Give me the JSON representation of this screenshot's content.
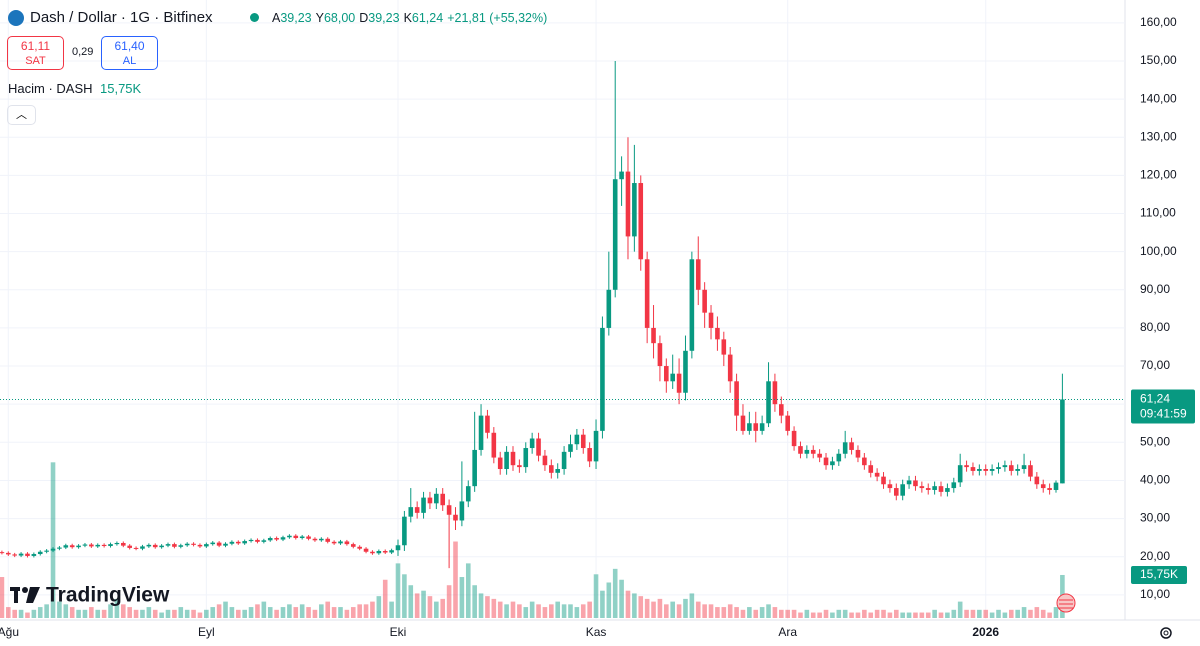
{
  "header": {
    "symbol": "Dash / Dollar · 1G · Bitfinex",
    "ohlc": [
      {
        "key": "A",
        "value": "39,23"
      },
      {
        "key": "Y",
        "value": "68,00"
      },
      {
        "key": "D",
        "value": "39,23"
      },
      {
        "key": "K",
        "value": "61,24"
      }
    ],
    "change": "+21,81 (+55,32%)",
    "sell_price": "61,11",
    "sell_label": "SAT",
    "spread": "0,29",
    "buy_price": "61,40",
    "buy_label": "AL",
    "volume_title": "Hacim · DASH",
    "volume_value": "15,75K"
  },
  "brand": "TradingView",
  "chart_data": {
    "type": "candlestick",
    "colors": {
      "up": "#089981",
      "down": "#f23645"
    },
    "xlim": [
      -0.3,
      175.8
    ],
    "xticks": [
      {
        "value": 1,
        "label": "Ağu"
      },
      {
        "value": 32,
        "label": "Eyl"
      },
      {
        "value": 62,
        "label": "Eki"
      },
      {
        "value": 93,
        "label": "Kas"
      },
      {
        "value": 123,
        "label": "Ara"
      },
      {
        "value": 154,
        "label": "2026"
      }
    ],
    "ylim": [
      3.4,
      166.0
    ],
    "yticks": [
      {
        "value": 10,
        "label": "10,00"
      },
      {
        "value": 20,
        "label": "20,00"
      },
      {
        "value": 30,
        "label": "30,00"
      },
      {
        "value": 40,
        "label": "40,00"
      },
      {
        "value": 50,
        "label": "50,00"
      },
      {
        "value": 60,
        "label": "60,00"
      },
      {
        "value": 70,
        "label": "70,00"
      },
      {
        "value": 80,
        "label": "80,00"
      },
      {
        "value": 90,
        "label": "90,00"
      },
      {
        "value": 100,
        "label": "100,00"
      },
      {
        "value": 110,
        "label": "110,00"
      },
      {
        "value": 120,
        "label": "120,00"
      },
      {
        "value": 130,
        "label": "130,00"
      },
      {
        "value": 140,
        "label": "140,00"
      },
      {
        "value": 150,
        "label": "150,00"
      },
      {
        "value": 160,
        "label": "160,00"
      }
    ],
    "grid": true,
    "volume_lim": [
      0,
      227
    ],
    "last_price_label": "61,24",
    "countdown": "09:41:59",
    "last_volume_label": "15,75K",
    "open": [
      21.2,
      21.0,
      20.6,
      20.3,
      20.8,
      20.2,
      20.7,
      21.3,
      21.6,
      22.1,
      22.4,
      23.0,
      22.5,
      22.9,
      23.2,
      22.7,
      23.1,
      22.8,
      23.3,
      23.6,
      22.9,
      22.3,
      22.1,
      22.7,
      23.1,
      22.5,
      22.9,
      23.3,
      22.6,
      23.0,
      23.4,
      23.1,
      22.7,
      23.3,
      23.7,
      22.9,
      23.4,
      23.9,
      23.5,
      24.1,
      24.4,
      23.9,
      24.3,
      24.9,
      24.5,
      25.1,
      25.5,
      24.9,
      25.3,
      24.7,
      24.3,
      24.7,
      23.9,
      23.5,
      24.0,
      23.3,
      22.6,
      22.1,
      21.3,
      20.9,
      21.5,
      21.1,
      21.7,
      23.0,
      30.5,
      33.0,
      31.5,
      35.5,
      34.0,
      36.5,
      33.5,
      31.0,
      29.5,
      34.5,
      38.5,
      48.0,
      57.0,
      52.5,
      46.0,
      43.0,
      47.5,
      44.0,
      43.5,
      48.5,
      51.0,
      46.5,
      44.0,
      42.0,
      43.0,
      47.5,
      49.5,
      52.0,
      48.5,
      45.0,
      53.0,
      80.0,
      90.0,
      119.0,
      121.0,
      104.0,
      118.0,
      98.0,
      80.0,
      76.0,
      70.0,
      66.0,
      68.0,
      63.0,
      74.0,
      98.0,
      90.0,
      84.0,
      80.0,
      77.0,
      73.0,
      66.0,
      57.0,
      53.0,
      55.0,
      53.0,
      55.0,
      66.0,
      60.0,
      57.0,
      53.0,
      49.0,
      47.0,
      48.0,
      47.0,
      46.0,
      44.0,
      45.0,
      47.0,
      50.0,
      48.0,
      46.0,
      44.0,
      42.0,
      41.0,
      39.0,
      38.0,
      36.0,
      39.0,
      40.0,
      38.5,
      38.0,
      37.5,
      38.5,
      37.0,
      38.0,
      39.5,
      44.0,
      43.5,
      42.5,
      43.0,
      42.5,
      43.0,
      43.5,
      44.0,
      42.5,
      43.0,
      44.0,
      41.0,
      39.0,
      38.0,
      37.5,
      39.23
    ],
    "high": [
      21.6,
      21.4,
      21.0,
      21.2,
      21.2,
      21.1,
      21.7,
      22.0,
      22.5,
      22.8,
      23.4,
      23.4,
      23.3,
      23.6,
      23.6,
      23.5,
      23.5,
      23.7,
      24.0,
      24.0,
      23.3,
      22.7,
      23.1,
      23.5,
      23.5,
      23.3,
      23.7,
      23.7,
      23.4,
      23.8,
      23.8,
      23.5,
      23.7,
      24.1,
      24.1,
      23.8,
      24.3,
      24.3,
      24.5,
      24.8,
      24.8,
      24.7,
      25.3,
      25.3,
      25.5,
      25.9,
      25.9,
      25.7,
      25.7,
      25.1,
      25.1,
      25.1,
      24.3,
      24.4,
      24.4,
      23.7,
      23.0,
      22.5,
      21.7,
      21.9,
      21.9,
      22.1,
      24.5,
      32.0,
      38.0,
      34.5,
      37.0,
      37.0,
      38.0,
      38.0,
      35.0,
      33.0,
      45.0,
      40.0,
      58.0,
      60.0,
      58.5,
      54.0,
      47.5,
      49.0,
      49.0,
      45.5,
      50.0,
      52.5,
      52.5,
      48.0,
      45.5,
      44.5,
      49.0,
      52.0,
      53.5,
      53.5,
      50.0,
      56.0,
      83.0,
      100.0,
      150.0,
      125.0,
      130.0,
      128.0,
      120.0,
      100.0,
      86.0,
      78.0,
      72.0,
      73.0,
      72.0,
      78.0,
      100.0,
      104.0,
      92.0,
      86.0,
      83.0,
      79.0,
      75.0,
      68.0,
      60.0,
      58.0,
      58.0,
      57.0,
      71.0,
      68.0,
      62.0,
      58.2,
      54.2,
      50.2,
      49.2,
      49.2,
      48.2,
      47.2,
      46.2,
      48.2,
      53.0,
      51.2,
      49.2,
      47.2,
      45.2,
      43.2,
      42.2,
      40.2,
      39.2,
      40.2,
      41.2,
      41.2,
      39.7,
      39.2,
      39.7,
      39.7,
      39.2,
      40.7,
      47.0,
      45.2,
      44.7,
      44.2,
      44.2,
      44.2,
      44.7,
      45.2,
      45.2,
      44.2,
      47.0,
      45.2,
      42.2,
      40.2,
      39.2,
      40.0,
      68.0
    ],
    "low": [
      20.6,
      20.2,
      19.9,
      19.9,
      19.8,
      19.8,
      20.3,
      20.9,
      21.2,
      21.7,
      22.0,
      22.1,
      22.1,
      22.5,
      22.3,
      22.3,
      22.4,
      22.4,
      22.9,
      22.5,
      21.9,
      21.7,
      21.7,
      22.3,
      22.1,
      22.1,
      22.5,
      22.2,
      22.2,
      22.6,
      22.7,
      22.3,
      22.3,
      22.9,
      22.5,
      22.5,
      23.0,
      23.1,
      23.1,
      23.7,
      23.5,
      23.5,
      23.9,
      24.1,
      24.1,
      24.7,
      24.5,
      24.5,
      24.3,
      23.9,
      23.9,
      23.5,
      23.1,
      23.1,
      22.9,
      22.2,
      21.7,
      20.9,
      20.5,
      20.5,
      20.7,
      20.7,
      20.2,
      21.5,
      29.0,
      30.0,
      30.0,
      32.5,
      32.5,
      32.0,
      17.0,
      27.0,
      28.0,
      33.0,
      37.0,
      46.5,
      51.0,
      44.5,
      41.5,
      41.5,
      42.5,
      42.0,
      42.0,
      47.0,
      45.0,
      42.5,
      40.5,
      40.5,
      41.5,
      46.0,
      48.0,
      47.0,
      43.5,
      43.0,
      51.0,
      78.0,
      88.0,
      112.0,
      98.0,
      100.0,
      95.0,
      76.0,
      72.0,
      66.0,
      63.0,
      64.0,
      60.0,
      61.0,
      72.0,
      86.0,
      80.0,
      77.0,
      74.0,
      70.0,
      63.0,
      53.0,
      52.0,
      52.0,
      50.0,
      52.0,
      54.0,
      58.0,
      55.0,
      51.8,
      47.8,
      45.8,
      45.8,
      45.8,
      44.8,
      42.8,
      42.8,
      43.8,
      45.8,
      46.8,
      44.8,
      42.8,
      40.8,
      39.8,
      37.8,
      36.8,
      34.8,
      34.8,
      37.8,
      37.3,
      36.8,
      36.3,
      36.3,
      35.8,
      35.8,
      36.8,
      38.3,
      42.3,
      41.3,
      41.3,
      41.3,
      41.3,
      41.8,
      42.3,
      41.3,
      41.3,
      41.8,
      39.8,
      37.8,
      36.8,
      36.3,
      36.8,
      39.23
    ],
    "close": [
      21.0,
      20.6,
      20.3,
      20.8,
      20.2,
      20.7,
      21.3,
      21.6,
      22.1,
      22.4,
      23.0,
      22.5,
      22.9,
      23.2,
      22.7,
      23.1,
      22.8,
      23.3,
      23.6,
      22.9,
      22.3,
      22.1,
      22.7,
      23.1,
      22.5,
      22.9,
      23.3,
      22.6,
      23.0,
      23.4,
      23.1,
      22.7,
      23.3,
      23.7,
      22.9,
      23.4,
      23.9,
      23.5,
      24.1,
      24.4,
      23.9,
      24.3,
      24.9,
      24.5,
      25.1,
      25.5,
      24.9,
      25.3,
      24.7,
      24.3,
      24.7,
      23.9,
      23.5,
      24.0,
      23.3,
      22.6,
      22.1,
      21.3,
      20.9,
      21.5,
      21.1,
      21.7,
      23.0,
      30.5,
      33.0,
      31.5,
      35.5,
      34.0,
      36.5,
      33.5,
      31.0,
      29.5,
      34.5,
      38.5,
      48.0,
      57.0,
      52.5,
      46.0,
      43.0,
      47.5,
      44.0,
      43.5,
      48.5,
      51.0,
      46.5,
      44.0,
      42.0,
      43.0,
      47.5,
      49.5,
      52.0,
      48.5,
      45.0,
      53.0,
      80.0,
      90.0,
      119.0,
      121.0,
      104.0,
      118.0,
      98.0,
      80.0,
      76.0,
      70.0,
      66.0,
      68.0,
      63.0,
      74.0,
      98.0,
      90.0,
      84.0,
      80.0,
      77.0,
      73.0,
      66.0,
      57.0,
      53.0,
      55.0,
      53.0,
      55.0,
      66.0,
      60.0,
      57.0,
      53.0,
      49.0,
      47.0,
      48.0,
      47.0,
      46.0,
      44.0,
      45.0,
      47.0,
      50.0,
      48.0,
      46.0,
      44.0,
      42.0,
      41.0,
      39.0,
      38.0,
      36.0,
      39.0,
      40.0,
      38.5,
      38.0,
      37.5,
      38.5,
      37.0,
      38.0,
      39.5,
      44.0,
      43.5,
      42.5,
      43.0,
      42.5,
      43.0,
      43.5,
      44.0,
      42.5,
      43.0,
      44.0,
      41.0,
      39.0,
      38.0,
      37.5,
      39.43,
      61.24
    ],
    "volume": [
      15,
      4,
      3,
      3,
      2,
      3,
      4,
      5,
      57,
      6,
      5,
      4,
      3,
      3,
      4,
      3,
      3,
      5,
      7,
      5,
      4,
      3,
      3,
      4,
      3,
      2,
      3,
      3,
      4,
      3,
      3,
      2,
      3,
      4,
      5,
      6,
      4,
      3,
      3,
      4,
      5,
      6,
      4,
      3,
      4,
      5,
      4,
      5,
      4,
      3,
      5,
      6,
      4,
      4,
      3,
      4,
      5,
      5,
      6,
      8,
      14,
      6,
      20,
      16,
      12,
      9,
      10,
      8,
      6,
      7,
      12,
      28,
      15,
      20,
      12,
      9,
      8,
      7,
      6,
      5,
      6,
      5,
      4,
      6,
      5,
      4,
      5,
      6,
      5,
      5,
      4,
      5,
      6,
      16,
      10,
      13,
      18,
      14,
      10,
      9,
      8,
      7,
      6,
      7,
      5,
      6,
      5,
      7,
      9,
      6,
      5,
      5,
      4,
      4,
      5,
      4,
      3,
      4,
      3,
      4,
      5,
      4,
      3,
      3,
      3,
      2,
      3,
      2,
      2,
      3,
      2,
      3,
      3,
      2,
      2,
      3,
      2,
      3,
      3,
      2,
      3,
      2,
      2,
      2,
      2,
      2,
      3,
      2,
      2,
      3,
      6,
      3,
      3,
      3,
      3,
      2,
      3,
      2,
      3,
      3,
      4,
      3,
      4,
      3,
      2,
      4,
      15.75
    ]
  }
}
